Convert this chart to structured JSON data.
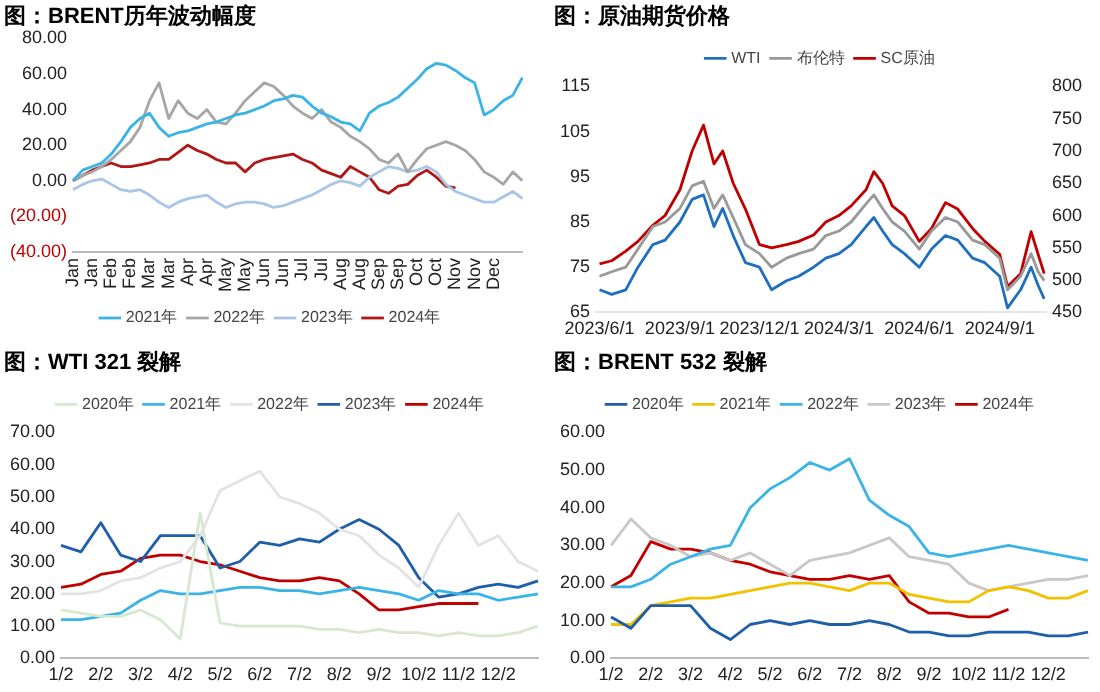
{
  "chart_data": [
    {
      "type": "line",
      "title": "图：BRENT历年波动幅度",
      "legend": "bottom",
      "marker": "none",
      "categories": [
        "Jan",
        null,
        "Jan",
        null,
        "Feb",
        null,
        "Feb",
        null,
        "Mar",
        null,
        "Mar",
        null,
        "Apr",
        null,
        "Apr",
        null,
        "May",
        null,
        "May",
        null,
        "Jun",
        null,
        "Jun",
        null,
        "Jul",
        null,
        "Jul",
        null,
        "Aug",
        null,
        "Aug",
        null,
        "Sep",
        null,
        "Sep",
        null,
        "Oct",
        null,
        "Oct",
        null,
        "Nov",
        null,
        "Nov",
        null,
        "Dec",
        null,
        null,
        null
      ],
      "ylim": [
        -40,
        80
      ],
      "yticks": [
        {
          "value": -40,
          "label": "(40.00)"
        },
        {
          "value": -20,
          "label": "(20.00)"
        },
        {
          "value": 0,
          "label": "0.00"
        },
        {
          "value": 20,
          "label": "20.00"
        },
        {
          "value": 40,
          "label": "40.00"
        },
        {
          "value": 60,
          "label": "60.00"
        },
        {
          "value": 80,
          "label": "80.00"
        }
      ],
      "series": [
        {
          "name": "2021年",
          "color": "#3ab4e6",
          "values": [
            0,
            6,
            8,
            10,
            15,
            22,
            30,
            35,
            38,
            30,
            25,
            27,
            28,
            30,
            32,
            33,
            35,
            37,
            38,
            40,
            42,
            45,
            46,
            48,
            47,
            42,
            38,
            36,
            33,
            32,
            28,
            38,
            42,
            44,
            47,
            52,
            57,
            63,
            66,
            65,
            62,
            58,
            55,
            37,
            40,
            45,
            48,
            58
          ]
        },
        {
          "name": "2022年",
          "color": "#a6a6a6",
          "values": [
            0,
            3,
            5,
            8,
            12,
            17,
            22,
            30,
            45,
            55,
            35,
            45,
            38,
            35,
            40,
            33,
            32,
            38,
            45,
            50,
            55,
            53,
            48,
            42,
            38,
            35,
            40,
            33,
            30,
            25,
            22,
            18,
            12,
            10,
            15,
            5,
            12,
            18,
            20,
            22,
            20,
            17,
            12,
            5,
            2,
            -2,
            5,
            0
          ]
        },
        {
          "name": "2023年",
          "color": "#a9c6e6",
          "values": [
            -5,
            -2,
            0,
            1,
            -2,
            -5,
            -6,
            -5,
            -8,
            -12,
            -15,
            -12,
            -10,
            -9,
            -8,
            -12,
            -15,
            -13,
            -12,
            -12,
            -13,
            -15,
            -14,
            -12,
            -10,
            -8,
            -5,
            -2,
            0,
            -1,
            -3,
            2,
            5,
            8,
            7,
            5,
            6,
            8,
            5,
            -2,
            -6,
            -8,
            -10,
            -12,
            -12,
            -9,
            -6,
            -10
          ]
        },
        {
          "name": "2024年",
          "color": "#b01818",
          "values": [
            0,
            3,
            6,
            8,
            10,
            8,
            8,
            9,
            10,
            12,
            12,
            16,
            20,
            17,
            15,
            12,
            10,
            10,
            5,
            10,
            12,
            13,
            14,
            15,
            12,
            10,
            6,
            4,
            2,
            8,
            5,
            2,
            -5,
            -7,
            -3,
            -2,
            3,
            6,
            2,
            -3,
            -4,
            null,
            null,
            null,
            null,
            null,
            null,
            null
          ]
        }
      ]
    },
    {
      "type": "line",
      "title": "图：原油期货价格",
      "legend": "top",
      "marker": "none",
      "x": [
        "2023-06-01",
        "2023-06-15",
        "2023-07-01",
        "2023-07-15",
        "2023-08-01",
        "2023-08-15",
        "2023-09-01",
        "2023-09-15",
        "2023-09-28",
        "2023-10-10",
        "2023-10-20",
        "2023-11-01",
        "2023-11-15",
        "2023-12-01",
        "2023-12-15",
        "2024-01-01",
        "2024-01-15",
        "2024-02-01",
        "2024-02-15",
        "2024-03-01",
        "2024-03-15",
        "2024-04-01",
        "2024-04-10",
        "2024-04-20",
        "2024-05-01",
        "2024-05-15",
        "2024-06-01",
        "2024-06-15",
        "2024-07-01",
        "2024-07-15",
        "2024-08-01",
        "2024-08-15",
        "2024-09-01",
        "2024-09-10",
        "2024-09-25",
        "2024-10-07",
        "2024-10-15",
        "2024-10-22"
      ],
      "xlim": [
        "2023-05-28",
        "2024-10-24"
      ],
      "xticks": [
        {
          "value": "2023-06-01",
          "label": "2023/6/1"
        },
        {
          "value": "2023-09-01",
          "label": "2023/9/1"
        },
        {
          "value": "2023-12-01",
          "label": "2023/12/1"
        },
        {
          "value": "2024-03-01",
          "label": "2024/3/1"
        },
        {
          "value": "2024-06-01",
          "label": "2024/6/1"
        },
        {
          "value": "2024-09-01",
          "label": "2024/9/1"
        }
      ],
      "ylim": [
        65,
        115
      ],
      "yticks": [
        65,
        75,
        85,
        95,
        105,
        115
      ],
      "y2lim": [
        450,
        800
      ],
      "y2ticks": [
        450,
        500,
        550,
        600,
        650,
        700,
        750,
        800
      ],
      "series": [
        {
          "name": "WTI",
          "color": "#1f6fc0",
          "values": [
            70,
            69,
            70,
            75,
            80,
            81,
            85,
            90,
            91,
            84,
            88,
            82,
            76,
            75,
            70,
            72,
            73,
            75,
            77,
            78,
            80,
            84,
            86,
            83,
            80,
            78,
            75,
            79,
            82,
            81,
            77,
            76,
            73,
            66,
            70,
            75,
            71,
            68
          ]
        },
        {
          "name": "布伦特",
          "color": "#999999",
          "values": [
            73,
            74,
            75,
            79,
            84,
            85,
            88,
            93,
            94,
            88,
            91,
            86,
            80,
            78,
            75,
            77,
            78,
            79,
            82,
            83,
            85,
            89,
            91,
            88,
            85,
            83,
            79,
            83,
            86,
            85,
            81,
            80,
            77,
            70,
            73,
            78,
            74,
            72
          ]
        },
        {
          "name": "SC原油",
          "color": "#c00000",
          "axis": "y2",
          "values": [
            525,
            530,
            545,
            560,
            585,
            600,
            640,
            700,
            740,
            680,
            700,
            650,
            610,
            555,
            550,
            555,
            560,
            570,
            590,
            600,
            615,
            640,
            668,
            650,
            615,
            600,
            560,
            580,
            620,
            610,
            580,
            560,
            540,
            490,
            510,
            575,
            540,
            510
          ]
        }
      ]
    },
    {
      "type": "line",
      "title": "图：WTI 321 裂解",
      "legend": "top",
      "marker": "none",
      "categories": [
        "1/2",
        null,
        "2/2",
        null,
        "3/2",
        null,
        "4/2",
        null,
        "5/2",
        null,
        "6/2",
        null,
        "7/2",
        null,
        "8/2",
        null,
        "9/2",
        null,
        "10/2",
        null,
        "11/2",
        null,
        "12/2",
        null,
        null
      ],
      "ylim": [
        0,
        70
      ],
      "yticks": [
        {
          "value": 0,
          "label": "0.00"
        },
        {
          "value": 10,
          "label": "10.00"
        },
        {
          "value": 20,
          "label": "20.00"
        },
        {
          "value": 30,
          "label": "30.00"
        },
        {
          "value": 40,
          "label": "40.00"
        },
        {
          "value": 50,
          "label": "50.00"
        },
        {
          "value": 60,
          "label": "60.00"
        },
        {
          "value": 70,
          "label": "70.00"
        }
      ],
      "series": [
        {
          "name": "2020年",
          "color": "#d6e8cf",
          "values": [
            15,
            14,
            13,
            13,
            15,
            12,
            6,
            45,
            11,
            10,
            10,
            10,
            10,
            9,
            9,
            8,
            9,
            8,
            8,
            7,
            8,
            7,
            7,
            8,
            10
          ]
        },
        {
          "name": "2021年",
          "color": "#3ab4e6",
          "values": [
            12,
            12,
            13,
            14,
            18,
            21,
            20,
            20,
            21,
            22,
            22,
            21,
            21,
            20,
            21,
            22,
            21,
            20,
            18,
            21,
            20,
            20,
            18,
            19,
            20
          ]
        },
        {
          "name": "2022年",
          "color": "#e3e3e3",
          "values": [
            20,
            20,
            21,
            24,
            25,
            28,
            30,
            38,
            52,
            55,
            58,
            50,
            48,
            45,
            40,
            38,
            32,
            28,
            22,
            35,
            45,
            35,
            38,
            30,
            27
          ]
        },
        {
          "name": "2023年",
          "color": "#1f5fa8",
          "values": [
            35,
            33,
            42,
            32,
            30,
            38,
            38,
            38,
            28,
            30,
            36,
            35,
            37,
            36,
            40,
            43,
            40,
            35,
            25,
            19,
            20,
            22,
            23,
            22,
            24
          ]
        },
        {
          "name": "2024年",
          "color": "#c00000",
          "values": [
            22,
            23,
            26,
            27,
            31,
            32,
            32,
            30,
            29,
            27,
            25,
            24,
            24,
            25,
            24,
            20,
            15,
            15,
            16,
            17,
            17,
            17,
            null,
            null,
            null
          ]
        }
      ]
    },
    {
      "type": "line",
      "title": "图：BRENT 532 裂解",
      "legend": "top",
      "marker": "none",
      "categories": [
        "1/2",
        null,
        "2/2",
        null,
        "3/2",
        null,
        "4/2",
        null,
        "5/2",
        null,
        "6/2",
        null,
        "7/2",
        null,
        "8/2",
        null,
        "9/2",
        null,
        "10/2",
        null,
        "11/2",
        null,
        "12/2",
        null,
        null
      ],
      "ylim": [
        0,
        60
      ],
      "yticks": [
        {
          "value": 0,
          "label": "0.00"
        },
        {
          "value": 10,
          "label": "10.00"
        },
        {
          "value": 20,
          "label": "20.00"
        },
        {
          "value": 30,
          "label": "30.00"
        },
        {
          "value": 40,
          "label": "40.00"
        },
        {
          "value": 50,
          "label": "50.00"
        },
        {
          "value": 60,
          "label": "60.00"
        }
      ],
      "series": [
        {
          "name": "2020年",
          "color": "#1f5fa8",
          "values": [
            11,
            8,
            14,
            14,
            14,
            8,
            5,
            9,
            10,
            9,
            10,
            9,
            9,
            10,
            9,
            7,
            7,
            6,
            6,
            7,
            7,
            7,
            6,
            6,
            7
          ]
        },
        {
          "name": "2021年",
          "color": "#f2c200",
          "values": [
            9,
            9,
            14,
            15,
            16,
            16,
            17,
            18,
            19,
            20,
            20,
            19,
            18,
            20,
            20,
            17,
            16,
            15,
            15,
            18,
            19,
            18,
            16,
            16,
            18
          ]
        },
        {
          "name": "2022年",
          "color": "#3ab4e6",
          "values": [
            19,
            19,
            21,
            25,
            27,
            29,
            30,
            40,
            45,
            48,
            52,
            50,
            53,
            42,
            38,
            35,
            28,
            27,
            28,
            29,
            30,
            29,
            28,
            27,
            26
          ]
        },
        {
          "name": "2023年",
          "color": "#c8c8c8",
          "values": [
            30,
            37,
            32,
            30,
            27,
            28,
            26,
            28,
            25,
            22,
            26,
            27,
            28,
            30,
            32,
            27,
            26,
            25,
            20,
            18,
            19,
            20,
            21,
            21,
            22
          ]
        },
        {
          "name": "2024年",
          "color": "#c00000",
          "values": [
            19,
            22,
            31,
            29,
            29,
            28,
            26,
            25,
            23,
            22,
            21,
            21,
            22,
            21,
            22,
            15,
            12,
            12,
            11,
            11,
            13,
            null,
            null,
            null,
            null
          ]
        }
      ]
    }
  ]
}
